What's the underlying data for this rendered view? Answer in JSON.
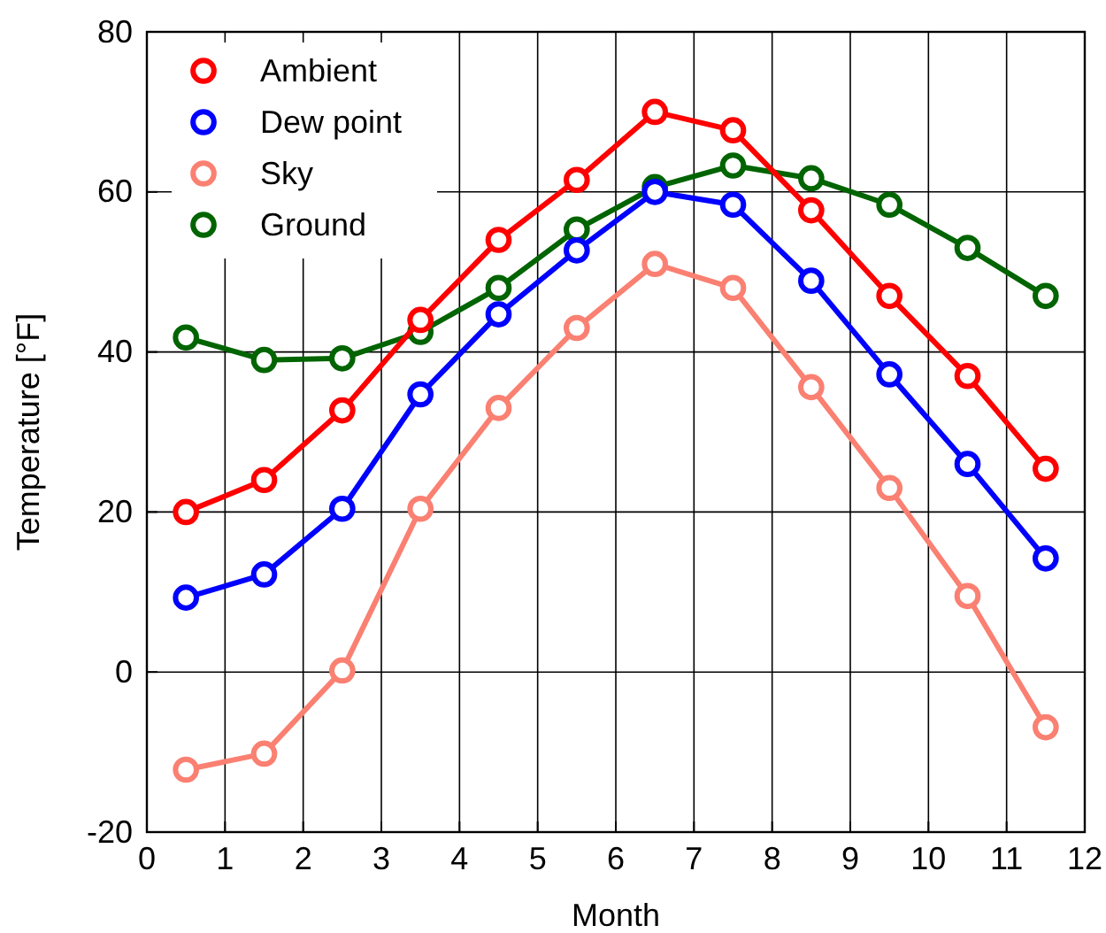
{
  "chart_data": {
    "type": "line",
    "xlabel": "Month",
    "ylabel": "Temperature [°F]",
    "x": [
      0.5,
      1.5,
      2.5,
      3.5,
      4.5,
      5.5,
      6.5,
      7.5,
      8.5,
      9.5,
      10.5,
      11.5
    ],
    "xlim": [
      0,
      12
    ],
    "xticks": [
      0,
      1,
      2,
      3,
      4,
      5,
      6,
      7,
      8,
      9,
      10,
      11,
      12
    ],
    "ylim": [
      -20,
      80
    ],
    "yticks": [
      -20,
      0,
      20,
      40,
      60,
      80
    ],
    "grid": true,
    "legend": "top left",
    "marker": "circle",
    "line_style": "solid",
    "series": [
      {
        "name": "Ambient",
        "color": "#ff0000",
        "values": [
          20,
          24,
          32.7,
          44,
          54,
          61.5,
          70,
          67.7,
          57.7,
          47,
          37,
          25.4
        ]
      },
      {
        "name": "Dew point",
        "color": "#0000ff",
        "values": [
          9.3,
          12.2,
          20.4,
          34.7,
          44.7,
          52.7,
          60,
          58.4,
          48.9,
          37.2,
          26,
          14.2
        ]
      },
      {
        "name": "Sky",
        "color": "#fa8072",
        "values": [
          -12.2,
          -10.2,
          0.2,
          20.4,
          33,
          43,
          51,
          48,
          35.6,
          23,
          9.5,
          -6.9
        ]
      },
      {
        "name": "Ground",
        "color": "#006400",
        "values": [
          41.8,
          39,
          39.2,
          42.5,
          48,
          55.3,
          60.6,
          63.3,
          61.7,
          58.4,
          53,
          47
        ]
      }
    ]
  }
}
